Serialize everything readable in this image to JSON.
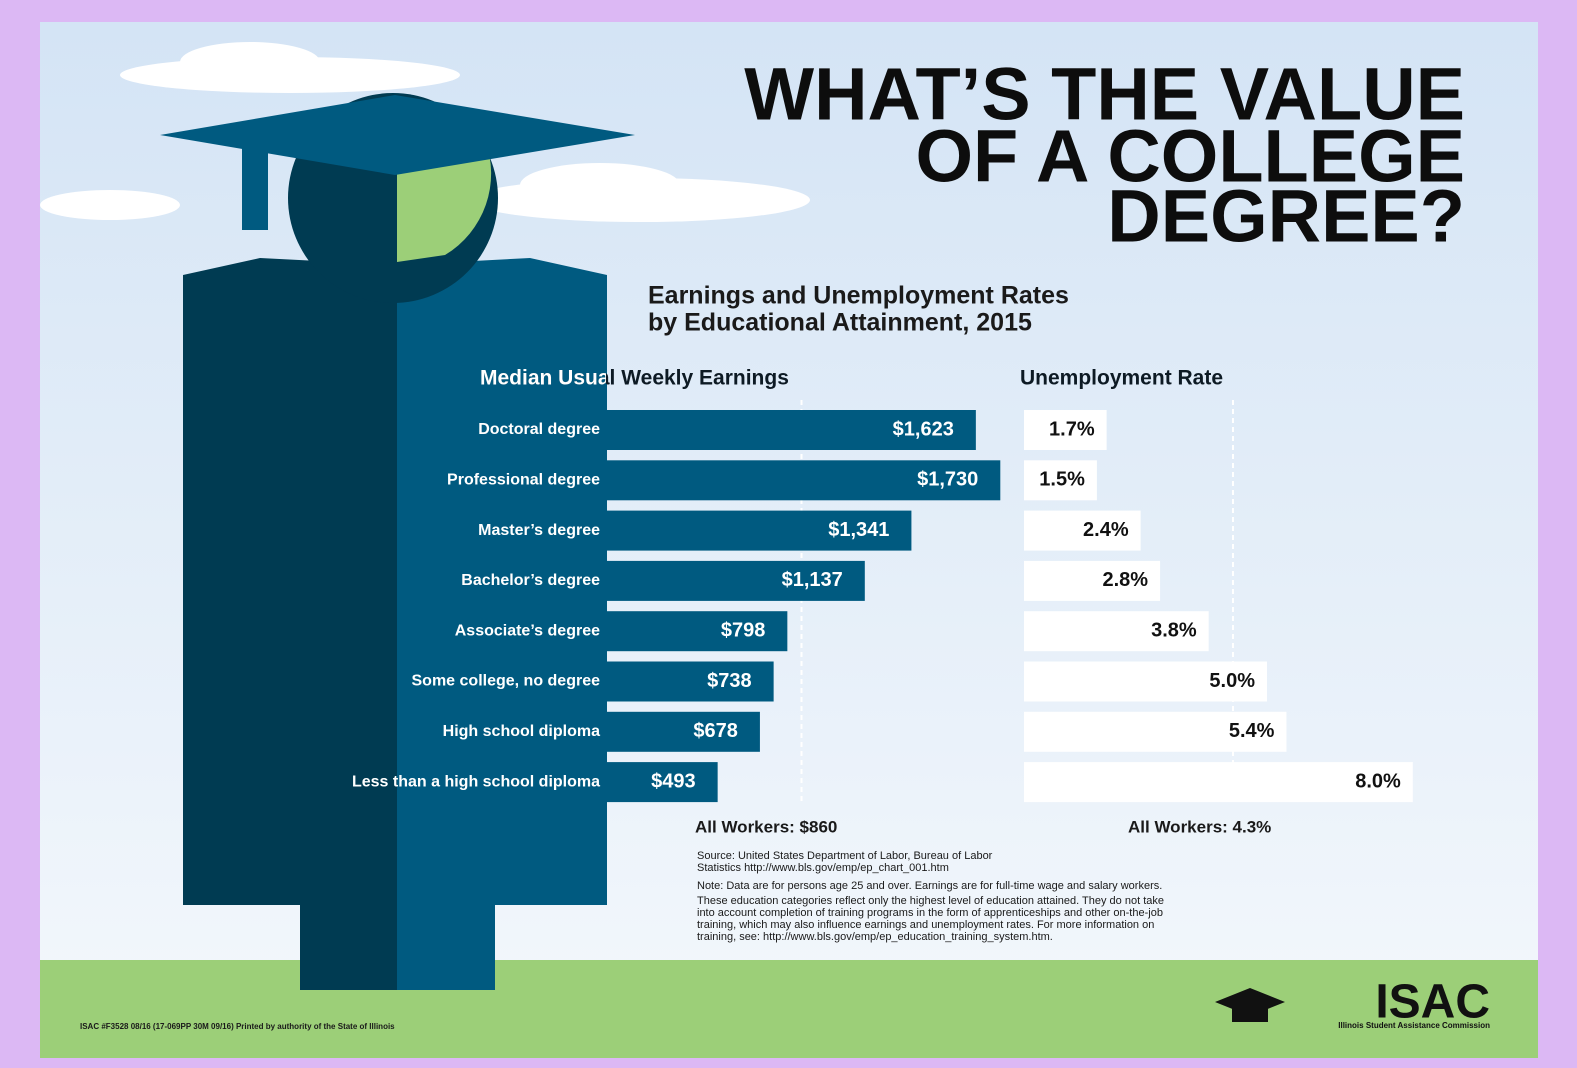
{
  "header": {
    "title_lines": [
      "WHAT’S THE VALUE",
      "OF A COLLEGE",
      "DEGREE?"
    ],
    "subtitle_lines": [
      "Earnings and Unemployment Rates",
      "by Educational Attainment, 2015"
    ]
  },
  "chart_data": [
    {
      "type": "bar",
      "orientation": "horizontal",
      "title": "Median Usual Weekly Earnings",
      "categories": [
        "Doctoral degree",
        "Professional degree",
        "Master’s degree",
        "Bachelor’s degree",
        "Associate’s degree",
        "Some college, no degree",
        "High school diploma",
        "Less than a high school diploma"
      ],
      "values": [
        1623,
        1730,
        1341,
        1137,
        798,
        738,
        678,
        493
      ],
      "value_labels": [
        "$1,623",
        "$1,730",
        "$1,341",
        "$1,137",
        "$798",
        "$738",
        "$678",
        "$493"
      ],
      "color": "#005a80",
      "xlim": [
        0,
        2000
      ],
      "reference": {
        "value": 860,
        "label": "All Workers: $860"
      }
    },
    {
      "type": "bar",
      "orientation": "horizontal",
      "title": "Unemployment Rate",
      "values": [
        1.7,
        1.5,
        2.4,
        2.8,
        3.8,
        5.0,
        5.4,
        8.0
      ],
      "value_labels": [
        "1.7%",
        "1.5%",
        "2.4%",
        "2.8%",
        "3.8%",
        "5.0%",
        "5.4%",
        "8.0%"
      ],
      "color": "#ffffff",
      "xlim": [
        0,
        10
      ],
      "reference": {
        "value": 4.3,
        "label": "All Workers: 4.3%"
      }
    }
  ],
  "notes": {
    "source": [
      "Source: United States Department of Labor, Bureau of Labor",
      "Statistics http://www.bls.gov/emp/ep_chart_001.htm"
    ],
    "note": [
      "Note: Data are for persons age 25 and over. Earnings are for full-time wage and salary workers.",
      "These education categories reflect only the highest level of education attained. They do not take",
      "into account completion of training programs in the form of apprenticeships and other on-the-job",
      "training, which may also influence earnings and unemployment rates. For more information on",
      "training, see: http://www.bls.gov/emp/ep_education_training_system.htm."
    ]
  },
  "footer": {
    "print_line": "ISAC #F3528 08/16 (17-069PP 30M 09/16) Printed by authority of the State of Illinois",
    "logo": "ISAC",
    "logo_subtitle": "Illinois Student Assistance Commission"
  }
}
